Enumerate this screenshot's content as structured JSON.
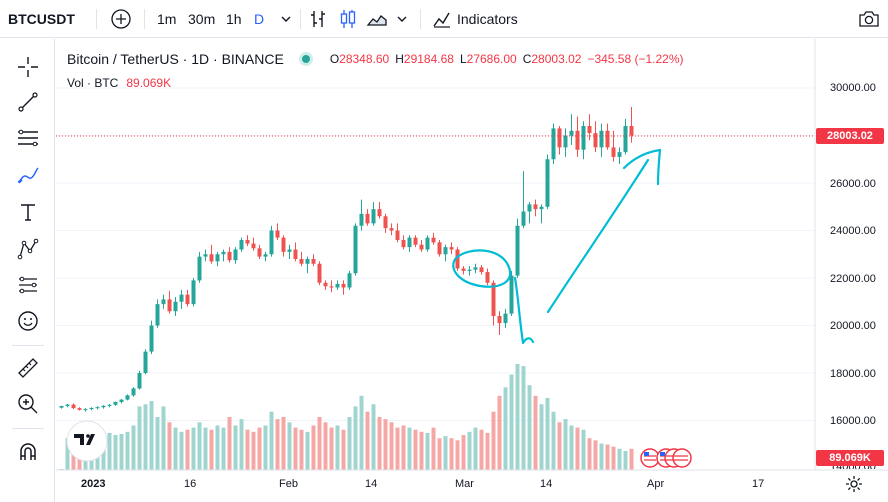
{
  "topbar": {
    "symbol": "BTCUSDT",
    "intervals": [
      "1m",
      "30m",
      "1h",
      "D"
    ],
    "active_interval": "D",
    "indicators_label": "Indicators"
  },
  "legend": {
    "title": "Bitcoin / TetherUS · 1D · BINANCE",
    "o_label": "O",
    "o_value": "28348.60",
    "h_label": "H",
    "h_value": "29184.68",
    "l_label": "L",
    "l_value": "27686.00",
    "c_label": "C",
    "c_value": "28003.02",
    "change": "−345.58 (−1.22%)",
    "vol_label": "Vol · BTC",
    "vol_value": "89.069K"
  },
  "price_scale": {
    "labels": [
      "30000.00",
      "28000.00",
      "26000.00",
      "24000.00",
      "22000.00",
      "20000.00",
      "18000.00",
      "16000.00",
      "14000.00"
    ],
    "last_price": "28003.02",
    "last_volume": "89.069K"
  },
  "time_scale": {
    "labels": [
      "2023",
      "16",
      "Feb",
      "14",
      "Mar",
      "14",
      "Apr",
      "17"
    ]
  },
  "colors": {
    "up": "#26a69a",
    "down": "#ef5350",
    "up_vol": "#9fd4cf",
    "down_vol": "#f5a7a6",
    "drawing": "#00bcd4",
    "accent": "#2962ff"
  },
  "chart_data": {
    "type": "candlestick",
    "symbol": "BTCUSDT",
    "interval": "1D",
    "start": "2023-01-01",
    "candles": [
      [
        16540,
        16620,
        16500,
        16610
      ],
      [
        16610,
        16700,
        16560,
        16670
      ],
      [
        16670,
        16720,
        16480,
        16520
      ],
      [
        16520,
        16560,
        16420,
        16450
      ],
      [
        16450,
        16520,
        16380,
        16480
      ],
      [
        16480,
        16560,
        16430,
        16530
      ],
      [
        16530,
        16600,
        16470,
        16560
      ],
      [
        16560,
        16640,
        16500,
        16620
      ],
      [
        16620,
        16700,
        16560,
        16660
      ],
      [
        16660,
        16800,
        16620,
        16780
      ],
      [
        16780,
        16900,
        16720,
        16880
      ],
      [
        16880,
        17100,
        16850,
        17060
      ],
      [
        17060,
        17400,
        17000,
        17350
      ],
      [
        17350,
        18100,
        17300,
        18000
      ],
      [
        18000,
        19000,
        17950,
        18900
      ],
      [
        18900,
        20200,
        18800,
        20000
      ],
      [
        20000,
        21100,
        19900,
        20900
      ],
      [
        20900,
        21300,
        20700,
        21100
      ],
      [
        21100,
        21450,
        20500,
        20600
      ],
      [
        20600,
        21200,
        20400,
        21000
      ],
      [
        21000,
        21500,
        20700,
        21300
      ],
      [
        21300,
        21500,
        20800,
        20900
      ],
      [
        20900,
        22000,
        20800,
        21900
      ],
      [
        21900,
        23100,
        21800,
        22900
      ],
      [
        22900,
        23200,
        22700,
        23000
      ],
      [
        23000,
        23400,
        22600,
        22700
      ],
      [
        22700,
        23100,
        22500,
        23000
      ],
      [
        23000,
        23200,
        22700,
        23100
      ],
      [
        23100,
        23300,
        22650,
        22750
      ],
      [
        22750,
        23300,
        22600,
        23200
      ],
      [
        23200,
        23700,
        23100,
        23600
      ],
      [
        23600,
        23800,
        23350,
        23450
      ],
      [
        23450,
        23700,
        23150,
        23250
      ],
      [
        23250,
        23400,
        22800,
        22900
      ],
      [
        22900,
        23100,
        22700,
        23000
      ],
      [
        23000,
        24200,
        22900,
        24000
      ],
      [
        24000,
        24300,
        23600,
        23700
      ],
      [
        23700,
        23800,
        22900,
        23100
      ],
      [
        23100,
        23400,
        22800,
        23200
      ],
      [
        23200,
        23500,
        22700,
        22800
      ],
      [
        22800,
        23100,
        22500,
        22600
      ],
      [
        22600,
        22900,
        22200,
        22800
      ],
      [
        22800,
        23000,
        22500,
        22600
      ],
      [
        22600,
        22700,
        21700,
        21800
      ],
      [
        21800,
        21900,
        21500,
        21650
      ],
      [
        21650,
        21900,
        21400,
        21600
      ],
      [
        21600,
        21900,
        21500,
        21750
      ],
      [
        21750,
        21900,
        21300,
        21600
      ],
      [
        21600,
        22300,
        21500,
        22200
      ],
      [
        22200,
        24300,
        22100,
        24200
      ],
      [
        24200,
        25300,
        24000,
        24700
      ],
      [
        24700,
        24900,
        24200,
        24300
      ],
      [
        24300,
        25200,
        24200,
        24900
      ],
      [
        24900,
        25200,
        24500,
        24600
      ],
      [
        24600,
        24700,
        23900,
        24100
      ],
      [
        24100,
        24300,
        23800,
        24000
      ],
      [
        24000,
        24300,
        23500,
        23600
      ],
      [
        23600,
        23800,
        23200,
        23300
      ],
      [
        23300,
        23800,
        23100,
        23700
      ],
      [
        23700,
        23800,
        23300,
        23400
      ],
      [
        23400,
        23600,
        23100,
        23200
      ],
      [
        23200,
        23800,
        23100,
        23700
      ],
      [
        23700,
        23900,
        23400,
        23500
      ],
      [
        23500,
        23600,
        22900,
        23000
      ],
      [
        23000,
        23400,
        22700,
        23300
      ],
      [
        23300,
        23500,
        23000,
        23200
      ],
      [
        23200,
        23300,
        22300,
        22400
      ],
      [
        22400,
        22500,
        22150,
        22300
      ],
      [
        22300,
        22500,
        22100,
        22350
      ],
      [
        22350,
        22600,
        22200,
        22450
      ],
      [
        22450,
        22550,
        22150,
        22250
      ],
      [
        22250,
        22400,
        21700,
        21800
      ],
      [
        21800,
        21900,
        20000,
        20400
      ],
      [
        20400,
        20600,
        19600,
        20100
      ],
      [
        20100,
        20700,
        19900,
        20500
      ],
      [
        20500,
        22300,
        20400,
        22100
      ],
      [
        22100,
        24500,
        22000,
        24200
      ],
      [
        24200,
        26500,
        24100,
        24800
      ],
      [
        24800,
        25200,
        24300,
        25100
      ],
      [
        25100,
        25300,
        24600,
        24900
      ],
      [
        24900,
        25100,
        24300,
        25000
      ],
      [
        25000,
        27200,
        24900,
        27000
      ],
      [
        27000,
        28500,
        26800,
        28300
      ],
      [
        28300,
        28400,
        27200,
        27500
      ],
      [
        27500,
        28300,
        27100,
        28000
      ],
      [
        28000,
        28900,
        27600,
        28200
      ],
      [
        28200,
        28800,
        27100,
        27400
      ],
      [
        27400,
        28600,
        27000,
        28400
      ],
      [
        28400,
        28900,
        27800,
        28100
      ],
      [
        28100,
        28600,
        27300,
        27500
      ],
      [
        27500,
        28500,
        27100,
        28200
      ],
      [
        28200,
        28500,
        27400,
        27500
      ],
      [
        27500,
        28200,
        26900,
        27100
      ],
      [
        27100,
        27500,
        26800,
        27300
      ],
      [
        27300,
        28700,
        27200,
        28400
      ],
      [
        28400,
        29200,
        27700,
        28000
      ]
    ],
    "volumes": [
      1,
      30,
      28,
      28,
      24,
      28,
      30,
      32,
      35,
      33,
      34,
      36,
      42,
      60,
      62,
      65,
      50,
      60,
      45,
      40,
      36,
      38,
      40,
      45,
      40,
      38,
      42,
      40,
      50,
      42,
      48,
      38,
      36,
      40,
      42,
      55,
      48,
      50,
      45,
      40,
      38,
      36,
      42,
      50,
      45,
      40,
      42,
      38,
      50,
      60,
      70,
      55,
      62,
      50,
      48,
      45,
      40,
      42,
      40,
      38,
      36,
      35,
      40,
      30,
      32,
      30,
      28,
      33,
      36,
      40,
      38,
      35,
      55,
      70,
      78,
      90,
      100,
      98,
      80,
      70,
      62,
      68,
      55,
      45,
      48,
      42,
      40,
      38,
      30,
      28,
      25,
      24,
      22,
      20,
      18,
      20
    ],
    "ylim": [
      14000,
      30600
    ],
    "last_price": 28003.02
  }
}
